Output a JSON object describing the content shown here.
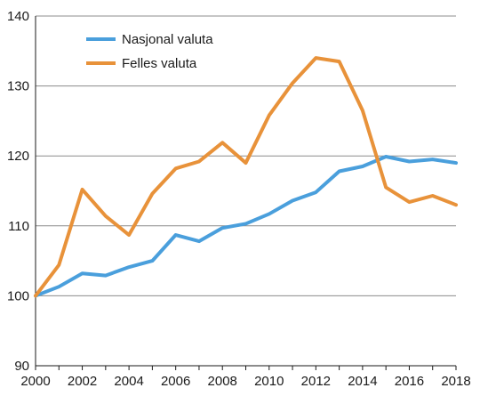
{
  "chart_data": {
    "type": "line",
    "title": "",
    "xlabel": "",
    "ylabel": "",
    "xlim": [
      2000,
      2018
    ],
    "ylim": [
      90,
      140
    ],
    "grid": true,
    "legend_position": "top-left",
    "x_ticks": [
      "2000",
      "2002",
      "2004",
      "2006",
      "2008",
      "2010",
      "2012",
      "2014",
      "2016",
      "2018"
    ],
    "y_ticks": [
      "90",
      "100",
      "110",
      "120",
      "130",
      "140"
    ],
    "x": [
      2000,
      2001,
      2002,
      2003,
      2004,
      2005,
      2006,
      2007,
      2008,
      2009,
      2010,
      2011,
      2012,
      2013,
      2014,
      2015,
      2016,
      2017,
      2018
    ],
    "series": [
      {
        "name": "Nasjonal valuta",
        "color": "#4a9fdc",
        "values": [
          100,
          101.3,
          103.2,
          102.9,
          104.1,
          105.0,
          108.7,
          107.8,
          109.7,
          110.3,
          111.7,
          113.6,
          114.8,
          117.8,
          118.5,
          119.9,
          119.2,
          119.5,
          119.0
        ]
      },
      {
        "name": "Felles valuta",
        "color": "#e8923a",
        "values": [
          100,
          104.4,
          115.2,
          111.4,
          108.7,
          114.6,
          118.2,
          119.2,
          121.9,
          119.0,
          125.8,
          130.4,
          134.0,
          133.5,
          126.5,
          115.5,
          113.4,
          114.3,
          113.0
        ]
      }
    ]
  }
}
